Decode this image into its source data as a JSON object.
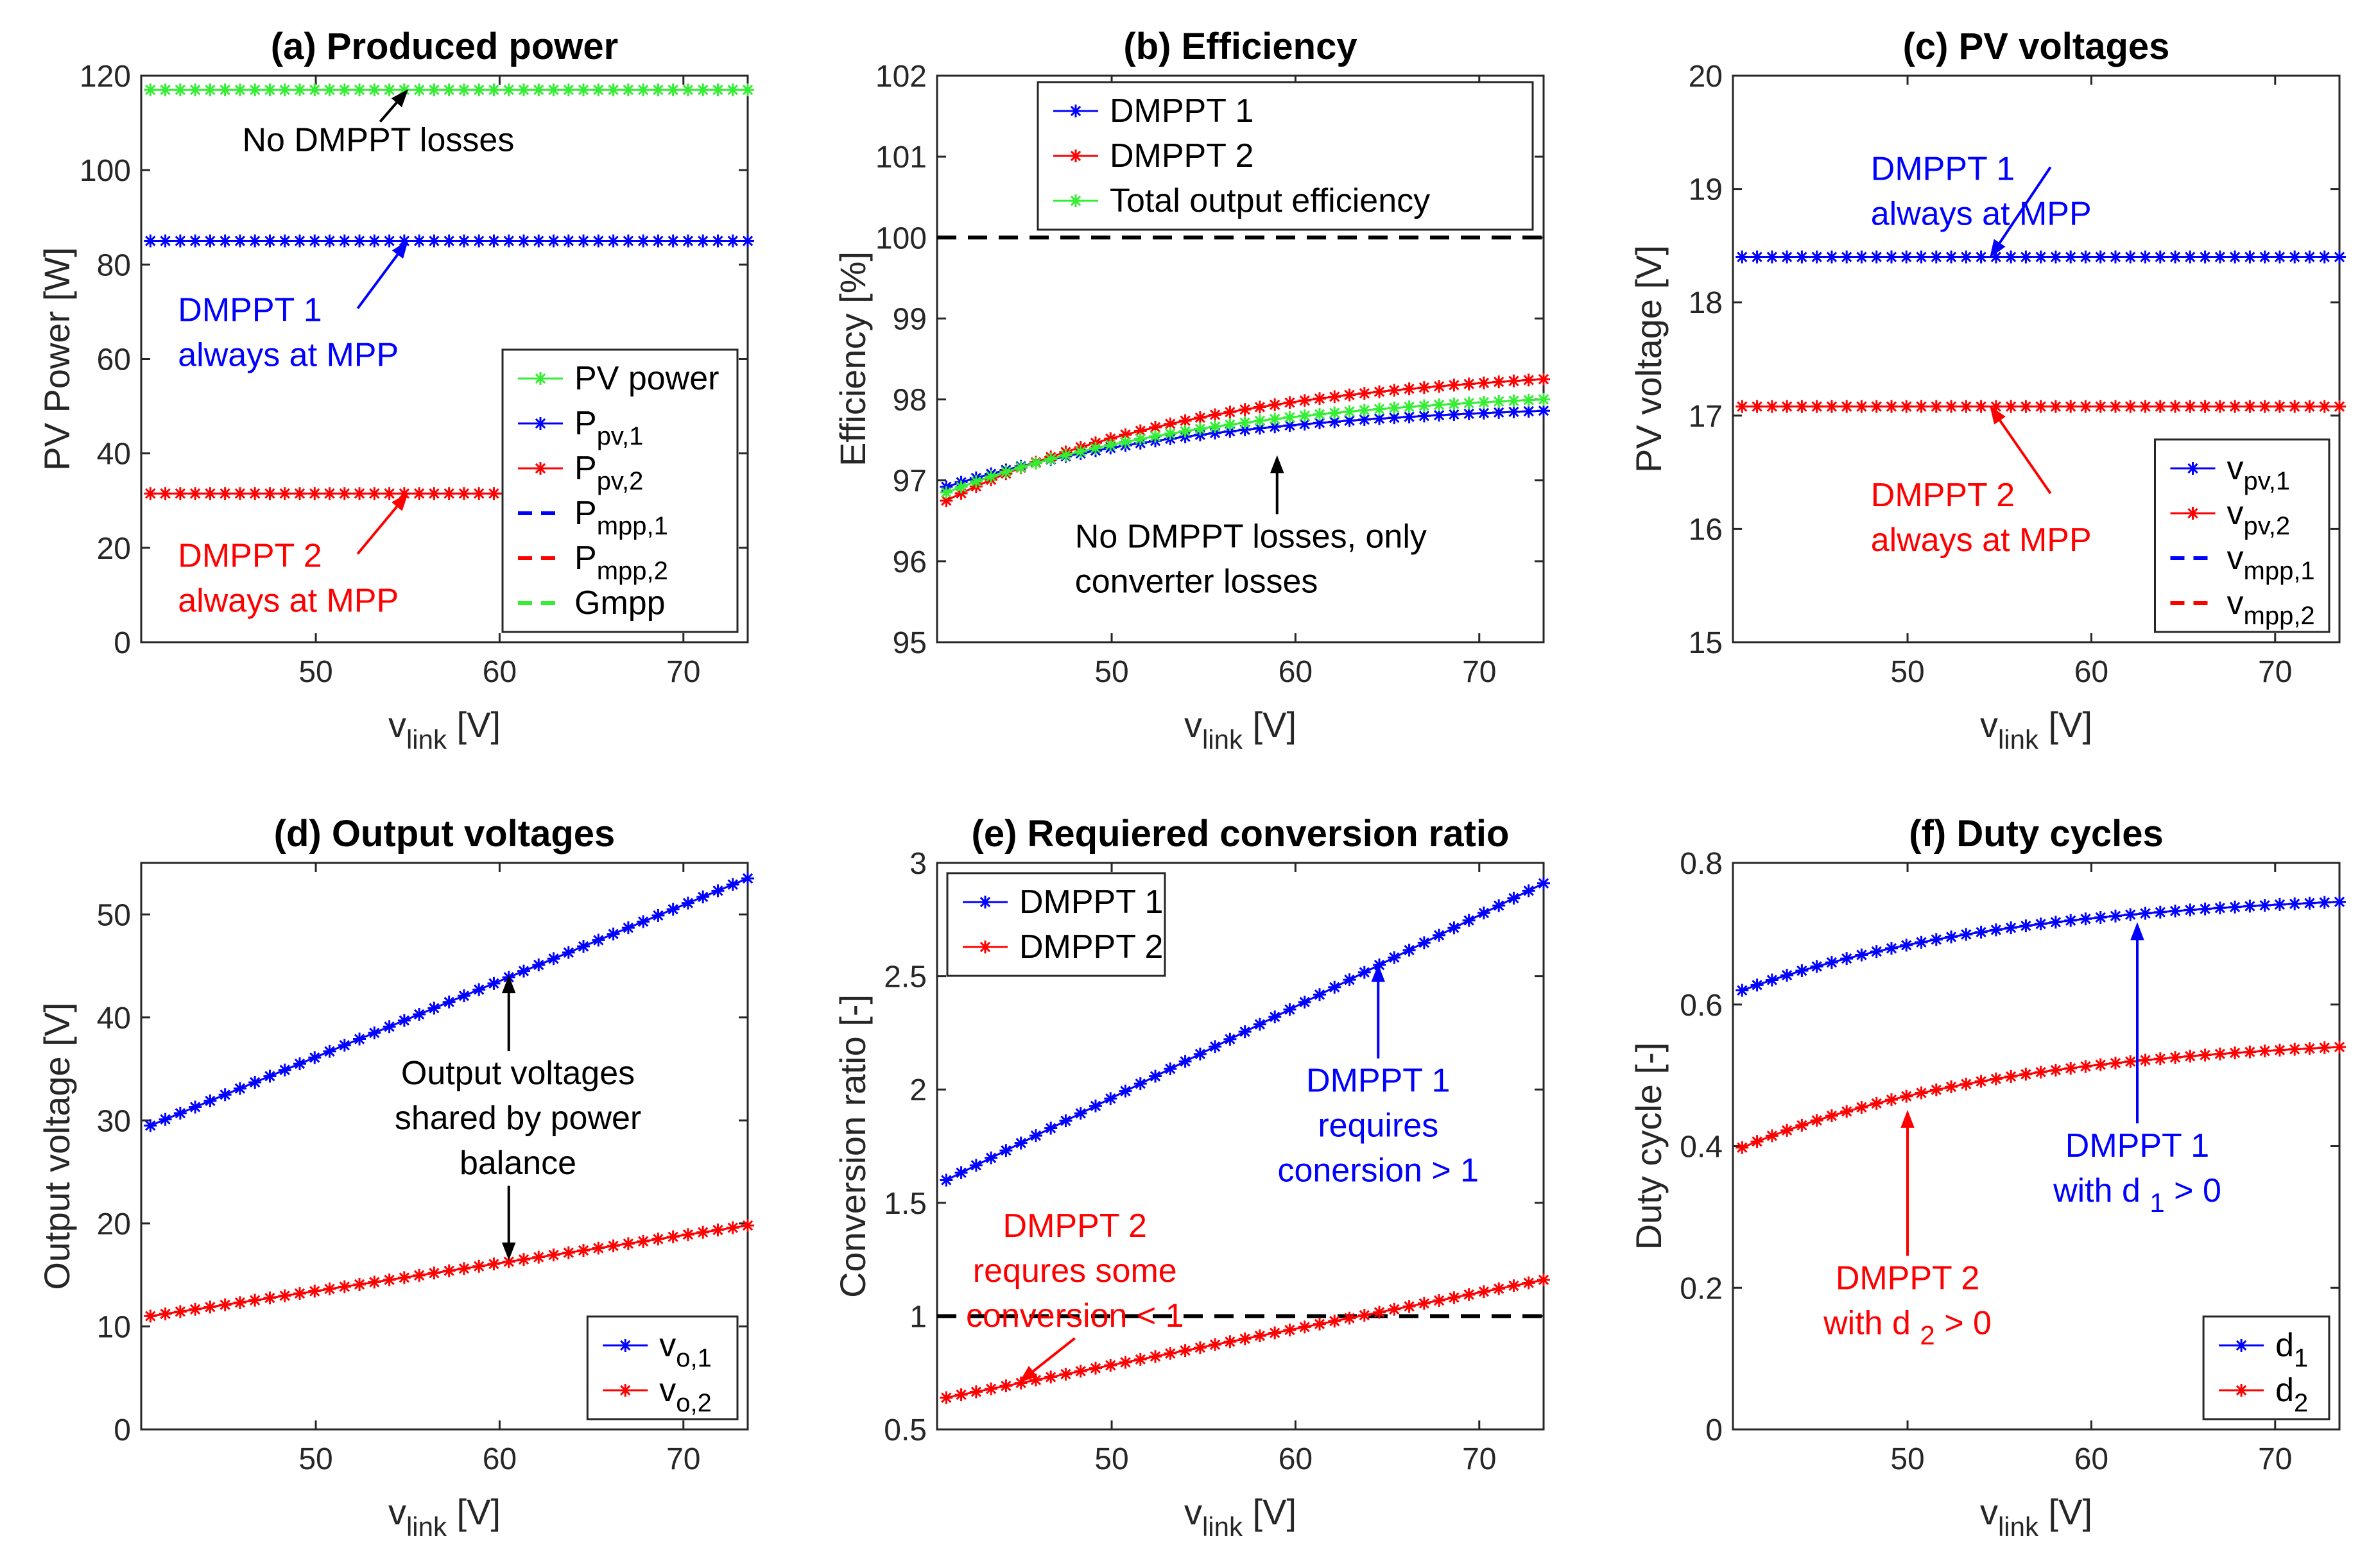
{
  "figure": "six-panel DMPPT results",
  "common": {
    "xlabel": "v",
    "xlabel_sub": "link",
    "xlabel_unit": " [V]"
  },
  "colors": {
    "blue": "#0000ff",
    "red": "#ff0000",
    "green": "#33ee33",
    "black": "#000000"
  },
  "chart_data": [
    {
      "id": "a",
      "type": "line",
      "title": "(a) Produced power",
      "ylabel": "PV Power [W]",
      "xlim": [
        40.5,
        73.5
      ],
      "ylim": [
        0,
        120
      ],
      "xticks": [
        50,
        60,
        70
      ],
      "yticks": [
        0,
        20,
        40,
        60,
        80,
        100,
        120
      ],
      "x": {
        "start": 41,
        "end": 73.5,
        "n": 41
      },
      "series": [
        {
          "name": "PV power",
          "base": "PV power",
          "sub": "",
          "color": "green",
          "style": "star",
          "y0": 117,
          "y1": 117
        },
        {
          "name": "P pv,1",
          "base": "P",
          "sub": "pv,1",
          "color": "blue",
          "style": "star",
          "y0": 85,
          "y1": 85
        },
        {
          "name": "P pv,2",
          "base": "P",
          "sub": "pv,2",
          "color": "red",
          "style": "star",
          "y0": 31.5,
          "y1": 31.5,
          "x_end": 61
        },
        {
          "name": "P mpp,1",
          "base": "P",
          "sub": "mpp,1",
          "color": "blue",
          "style": "dash",
          "y0": 85,
          "y1": 85,
          "hidden": true
        },
        {
          "name": "P mpp,2",
          "base": "P",
          "sub": "mpp,2",
          "color": "red",
          "style": "dash",
          "y0": 31.5,
          "y1": 31.5,
          "hidden": true
        },
        {
          "name": "Gmpp",
          "base": "Gmpp",
          "sub": "",
          "color": "green",
          "style": "dash",
          "y0": 117,
          "y1": 117,
          "hidden": true
        }
      ],
      "annotations": [
        {
          "lines": [
            "No DMPPT losses"
          ],
          "color": "black",
          "tx": 46,
          "ty": 104,
          "ax": 55,
          "ay": 117
        },
        {
          "lines": [
            "DMPPT 1",
            "always at MPP"
          ],
          "color": "blue",
          "tx": 42.5,
          "ty": 68,
          "ax": 55,
          "ay": 85
        },
        {
          "lines": [
            "DMPPT 2",
            "always at MPP"
          ],
          "color": "red",
          "tx": 42.5,
          "ty": 16,
          "ax": 55,
          "ay": 31.5
        }
      ],
      "legend": {
        "position": "lower-right"
      }
    },
    {
      "id": "b",
      "type": "line",
      "title": "(b) Efficiency",
      "ylabel": "Efficiency [%]",
      "xlim": [
        40.5,
        73.5
      ],
      "ylim": [
        95,
        102
      ],
      "xticks": [
        50,
        60,
        70
      ],
      "yticks": [
        95,
        96,
        97,
        98,
        99,
        100,
        101,
        102
      ],
      "x": {
        "start": 41,
        "end": 73.5,
        "n": 41
      },
      "series": [
        {
          "name": "DMPPT 1",
          "base": "DMPPT 1",
          "sub": "",
          "color": "blue",
          "style": "star",
          "y0": 96.92,
          "y1": 97.86,
          "shape": "sat"
        },
        {
          "name": "DMPPT 2",
          "base": "DMPPT 2",
          "sub": "",
          "color": "red",
          "style": "star",
          "y0": 96.75,
          "y1": 98.25,
          "shape": "sat"
        },
        {
          "name": "Total output efficiency",
          "base": "Total output efficiency",
          "sub": "",
          "color": "green",
          "style": "star",
          "y0": 96.85,
          "y1": 98.0,
          "shape": "sat"
        }
      ],
      "reference_lines": [
        {
          "y": 100,
          "color": "black"
        }
      ],
      "annotations": [
        {
          "lines": [
            "No DMPPT losses, only",
            "converter losses"
          ],
          "color": "black",
          "tx": 48,
          "ty": 96.17,
          "ax": 59,
          "ay": 97.3,
          "align": "start"
        }
      ],
      "legend": {
        "position": "top"
      }
    },
    {
      "id": "c",
      "type": "line",
      "title": "(c) PV voltages",
      "ylabel": "PV voltage [V]",
      "xlim": [
        40.5,
        73.5
      ],
      "ylim": [
        15,
        20
      ],
      "xticks": [
        50,
        60,
        70
      ],
      "yticks": [
        15,
        16,
        17,
        18,
        19,
        20
      ],
      "x": {
        "start": 41,
        "end": 73.5,
        "n": 41
      },
      "series": [
        {
          "name": "v pv,1",
          "base": "v",
          "sub": "pv,1",
          "color": "blue",
          "style": "star",
          "y0": 18.4,
          "y1": 18.4
        },
        {
          "name": "v pv,2",
          "base": "v",
          "sub": "pv,2",
          "color": "red",
          "style": "star",
          "y0": 17.08,
          "y1": 17.08
        },
        {
          "name": "v mpp,1",
          "base": "v",
          "sub": "mpp,1",
          "color": "blue",
          "style": "dash",
          "y0": 18.4,
          "y1": 18.4,
          "hidden": true
        },
        {
          "name": "v mpp,2",
          "base": "v",
          "sub": "mpp,2",
          "color": "red",
          "style": "dash",
          "y0": 17.08,
          "y1": 17.08,
          "hidden": true
        }
      ],
      "annotations": [
        {
          "lines": [
            "DMPPT 1",
            "always at MPP"
          ],
          "color": "blue",
          "tx": 48,
          "ty": 19.08,
          "ax": 54.5,
          "ay": 18.4
        },
        {
          "lines": [
            "DMPPT 2",
            "always at MPP"
          ],
          "color": "red",
          "tx": 48,
          "ty": 16.2,
          "ax": 54.5,
          "ay": 17.08
        }
      ],
      "legend": {
        "position": "lower-right"
      }
    },
    {
      "id": "d",
      "type": "line",
      "title": "(d) Output voltages",
      "ylabel": "Output voltage [V]",
      "xlim": [
        40.5,
        73.5
      ],
      "ylim": [
        0,
        55
      ],
      "xticks": [
        50,
        60,
        70
      ],
      "yticks": [
        0,
        10,
        20,
        30,
        40,
        50
      ],
      "x": {
        "start": 41,
        "end": 73.5,
        "n": 41
      },
      "series": [
        {
          "name": "v o,1",
          "base": "v",
          "sub": "o,1",
          "color": "blue",
          "style": "star",
          "y0": 29.5,
          "y1": 53.5
        },
        {
          "name": "v o,2",
          "base": "v",
          "sub": "o,2",
          "color": "red",
          "style": "star",
          "y0": 11,
          "y1": 19.8
        }
      ],
      "annotations": [
        {
          "lines": [
            "Output voltages",
            "shared by power",
            "balance"
          ],
          "color": "black",
          "tx": 61,
          "ty": 33.5,
          "ax": 60.5,
          "ay": 44,
          "ax2": 60.5,
          "ay2": 16.5,
          "align": "middle"
        }
      ],
      "legend": {
        "position": "lower-right"
      }
    },
    {
      "id": "e",
      "type": "line",
      "title": "(e) Requiered conversion ratio",
      "ylabel": "Conversion ratio [-]",
      "xlim": [
        40.5,
        73.5
      ],
      "ylim": [
        0.5,
        3
      ],
      "xticks": [
        50,
        60,
        70
      ],
      "yticks": [
        0.5,
        1,
        1.5,
        2,
        2.5,
        3
      ],
      "x": {
        "start": 41,
        "end": 73.5,
        "n": 41
      },
      "series": [
        {
          "name": "DMPPT 1",
          "base": "DMPPT 1",
          "sub": "",
          "color": "blue",
          "style": "star",
          "y0": 1.6,
          "y1": 2.91
        },
        {
          "name": "DMPPT 2",
          "base": "DMPPT 2",
          "sub": "",
          "color": "red",
          "style": "star",
          "y0": 0.64,
          "y1": 1.16
        }
      ],
      "reference_lines": [
        {
          "y": 1,
          "color": "black"
        }
      ],
      "annotations": [
        {
          "lines": [
            "DMPPT 1",
            "requires",
            "conersion > 1"
          ],
          "color": "blue",
          "tx": 64.5,
          "ty": 1.99,
          "ax": 64.5,
          "ay": 2.55,
          "align": "middle"
        },
        {
          "lines": [
            "DMPPT 2",
            "requres some",
            "conversion < 1"
          ],
          "color": "red",
          "tx": 48,
          "ty": 1.35,
          "ax": 45,
          "ay": 0.71,
          "align": "middle"
        }
      ],
      "legend": {
        "position": "top-left"
      }
    },
    {
      "id": "f",
      "type": "line",
      "title": "(f) Duty cycles",
      "ylabel": "Duty cycle [-]",
      "xlim": [
        40.5,
        73.5
      ],
      "ylim": [
        0,
        0.8
      ],
      "xticks": [
        50,
        60,
        70
      ],
      "yticks": [
        0,
        0.2,
        0.4,
        0.6,
        0.8
      ],
      "x": {
        "start": 41,
        "end": 73.5,
        "n": 41
      },
      "series": [
        {
          "name": "d 1",
          "base": "d",
          "sub": "1",
          "color": "blue",
          "style": "star",
          "y0": 0.62,
          "y1": 0.745,
          "shape": "sat"
        },
        {
          "name": "d 2",
          "base": "d",
          "sub": "2",
          "color": "red",
          "style": "star",
          "y0": 0.398,
          "y1": 0.54,
          "shape": "sat"
        }
      ],
      "annotations": [
        {
          "lines": [
            "DMPPT 1",
            "with d _1 > 0"
          ],
          "color": "blue",
          "tx": 62.5,
          "ty": 0.385,
          "ax": 62.5,
          "ay": 0.715,
          "align": "middle"
        },
        {
          "lines": [
            "DMPPT 2",
            "with d _2 > 0"
          ],
          "color": "red",
          "tx": 50,
          "ty": 0.198,
          "ax": 50,
          "ay": 0.45,
          "align": "middle"
        }
      ],
      "legend": {
        "position": "lower-right"
      }
    }
  ]
}
